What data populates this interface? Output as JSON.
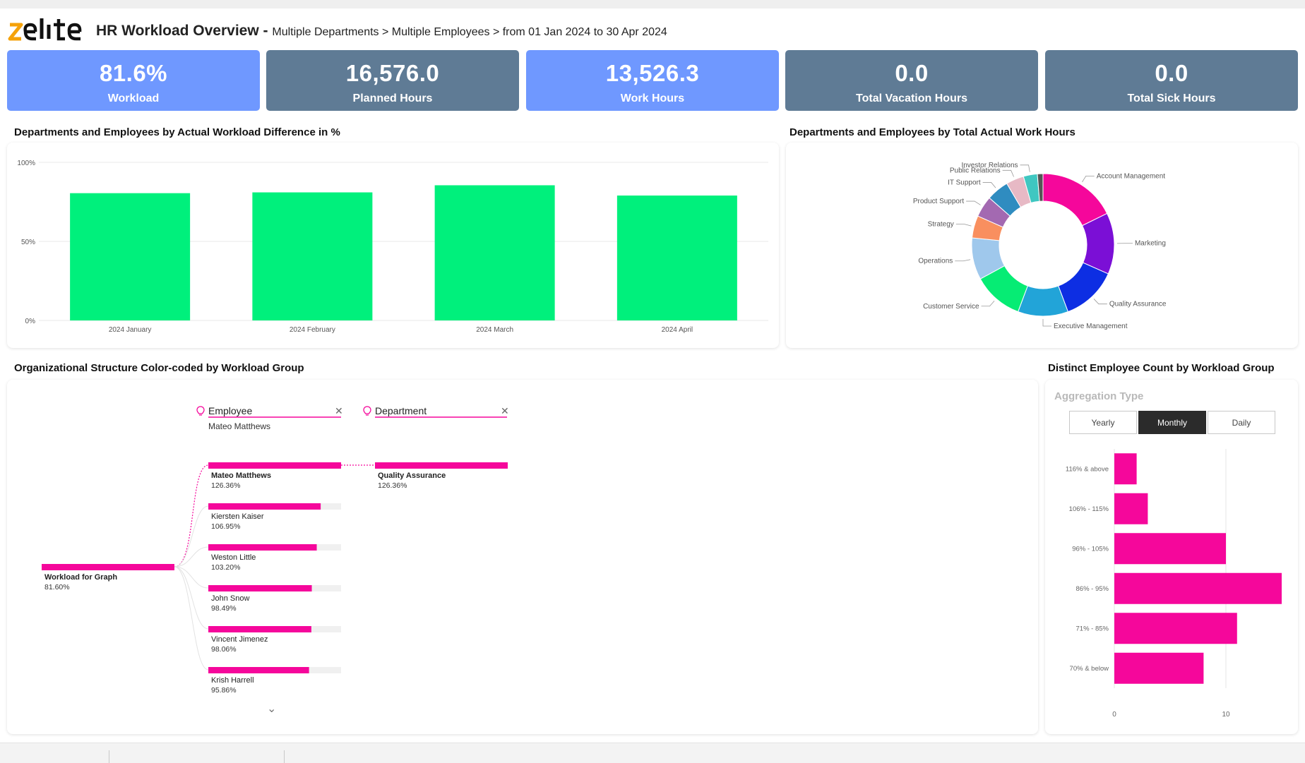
{
  "header": {
    "title": "HR Workload Overview",
    "subtitle": "Multiple Departments > Multiple Employees > from 01 Jan 2024 to 30 Apr 2024"
  },
  "kpis": [
    {
      "value": "81.6%",
      "label": "Workload"
    },
    {
      "value": "16,576.0",
      "label": "Planned Hours"
    },
    {
      "value": "13,526.3",
      "label": "Work Hours"
    },
    {
      "value": "0.0",
      "label": "Total Vacation Hours"
    },
    {
      "value": "0.0",
      "label": "Total Sick Hours"
    }
  ],
  "colors": {
    "accent": "#6f98ff",
    "slate": "#5f7b95",
    "bar_green": "#00f07c",
    "magenta": "#f5079b"
  },
  "sections": {
    "workload_diff": "Departments and Employees by Actual Workload Difference in %",
    "work_hours": "Departments and Employees by Total Actual Work Hours",
    "org_structure": "Organizational Structure Color-coded by Workload Group",
    "distinct_count": "Distinct Employee Count by Workload Group"
  },
  "chart_data": [
    {
      "type": "bar",
      "categories": [
        "2024 January",
        "2024 February",
        "2024 March",
        "2024 April"
      ],
      "values": [
        80.5,
        81,
        85.5,
        79
      ],
      "y_ticks": [
        "100%",
        "50%",
        "0%"
      ],
      "ylim": [
        0,
        100
      ],
      "grid": true
    },
    {
      "type": "pie",
      "slices": [
        {
          "label": "Account Management",
          "value": 14.0,
          "color": "#f5079b"
        },
        {
          "label": "Marketing",
          "value": 11.0,
          "color": "#7b0fd6"
        },
        {
          "label": "Quality Assurance",
          "value": 10.0,
          "color": "#0d2ee3"
        },
        {
          "label": "Executive Management",
          "value": 9.0,
          "color": "#22a4d8"
        },
        {
          "label": "Customer Service",
          "value": 9.0,
          "color": "#06ec74"
        },
        {
          "label": "Operations",
          "value": 7.5,
          "color": "#9fc8ec"
        },
        {
          "label": "Strategy",
          "value": 4.0,
          "color": "#f98f5f"
        },
        {
          "label": "Product Support",
          "value": 3.8,
          "color": "#a369b1"
        },
        {
          "label": "IT Support",
          "value": 4.0,
          "color": "#2f8cc0"
        },
        {
          "label": "Public Relations",
          "value": 3.2,
          "color": "#e7b9c5"
        },
        {
          "label": "Investor Relations",
          "value": 2.5,
          "color": "#3fc7c1"
        },
        {
          "label": "",
          "value": 1.0,
          "color": "#555555"
        }
      ]
    },
    {
      "type": "bar",
      "orientation": "horizontal",
      "categories": [
        "116% & above",
        "106% - 115%",
        "96% - 105%",
        "86% - 95%",
        "71% - 85%",
        "70% & below"
      ],
      "values": [
        2,
        3,
        10,
        15,
        11,
        8
      ],
      "x_ticks": [
        "0",
        "10"
      ],
      "xlim": [
        0,
        15
      ]
    }
  ],
  "decomposition": {
    "slicers": [
      {
        "label": "Employee",
        "selected": "Mateo Matthews"
      },
      {
        "label": "Department",
        "selected": ""
      }
    ],
    "root": {
      "name": "Workload for Graph",
      "value": "81.60%",
      "pct": 81.6
    },
    "employees": [
      {
        "name": "Mateo Matthews",
        "value": "126.36%",
        "pct": 126.36
      },
      {
        "name": "Kiersten Kaiser",
        "value": "106.95%",
        "pct": 106.95
      },
      {
        "name": "Weston Little",
        "value": "103.20%",
        "pct": 103.2
      },
      {
        "name": "John Snow",
        "value": "98.49%",
        "pct": 98.49
      },
      {
        "name": "Vincent Jimenez",
        "value": "98.06%",
        "pct": 98.06
      },
      {
        "name": "Krish Harrell",
        "value": "95.86%",
        "pct": 95.86
      }
    ],
    "department": {
      "name": "Quality Assurance",
      "value": "126.36%",
      "pct": 126.36
    }
  },
  "aggregation": {
    "title": "Aggregation Type",
    "options": [
      "Yearly",
      "Monthly",
      "Daily"
    ],
    "selected": "Monthly"
  }
}
